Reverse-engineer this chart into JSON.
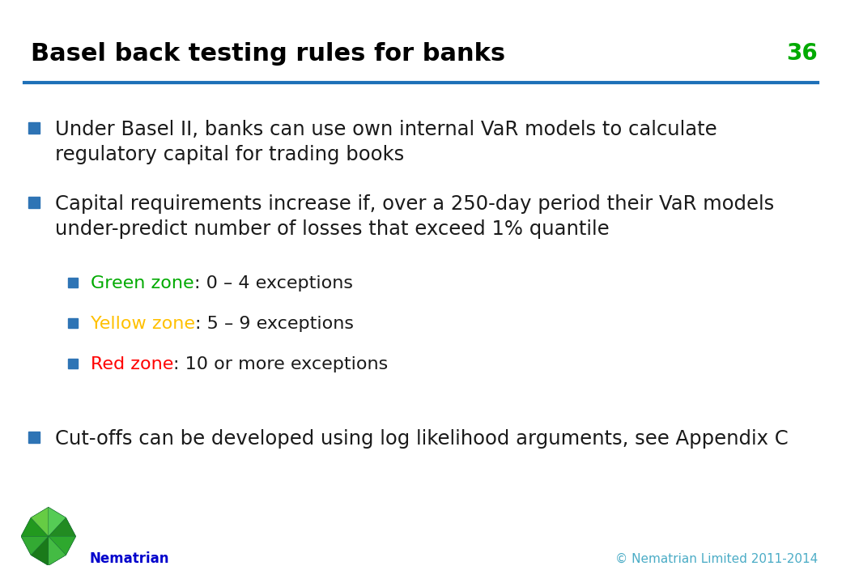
{
  "title": "Basel back testing rules for banks",
  "slide_number": "36",
  "title_color": "#000000",
  "slide_number_color": "#00AA00",
  "header_line_color": "#1E70B8",
  "background_color": "#FFFFFF",
  "bullet_color": "#2E74B5",
  "text_color": "#404040",
  "footer_text": "© Nematrian Limited 2011-2014",
  "footer_color": "#4BACC6",
  "nematrian_color": "#0000CC",
  "bullet_points": [
    {
      "text": "Under Basel II, banks can use own internal VaR models to calculate\nregulatory capital for trading books",
      "level": 0,
      "color": "#1a1a1a",
      "bullet_color": "#2E74B5"
    },
    {
      "text": "Capital requirements increase if, over a 250-day period their VaR models\nunder-predict number of losses that exceed 1% quantile",
      "level": 0,
      "color": "#1a1a1a",
      "bullet_color": "#2E74B5"
    },
    {
      "text_parts": [
        {
          "text": "Green zone",
          "color": "#00AA00"
        },
        {
          "text": ": 0 – 4 exceptions",
          "color": "#1a1a1a"
        }
      ],
      "level": 1,
      "bullet_color": "#2E74B5"
    },
    {
      "text_parts": [
        {
          "text": "Yellow zone",
          "color": "#FFC000"
        },
        {
          "text": ": 5 – 9 exceptions",
          "color": "#1a1a1a"
        }
      ],
      "level": 1,
      "bullet_color": "#2E74B5"
    },
    {
      "text_parts": [
        {
          "text": "Red zone",
          "color": "#FF0000"
        },
        {
          "text": ": 10 or more exceptions",
          "color": "#1a1a1a"
        }
      ],
      "level": 1,
      "bullet_color": "#2E74B5"
    },
    {
      "text": "Cut-offs can be developed using log likelihood arguments, see Appendix C",
      "level": 0,
      "color": "#1a1a1a",
      "bullet_color": "#2E74B5"
    }
  ],
  "title_fontsize": 22,
  "body_fontsize": 17.5,
  "sub_fontsize": 16,
  "slide_number_fontsize": 20,
  "footer_fontsize": 11,
  "nematrian_fontsize": 12
}
